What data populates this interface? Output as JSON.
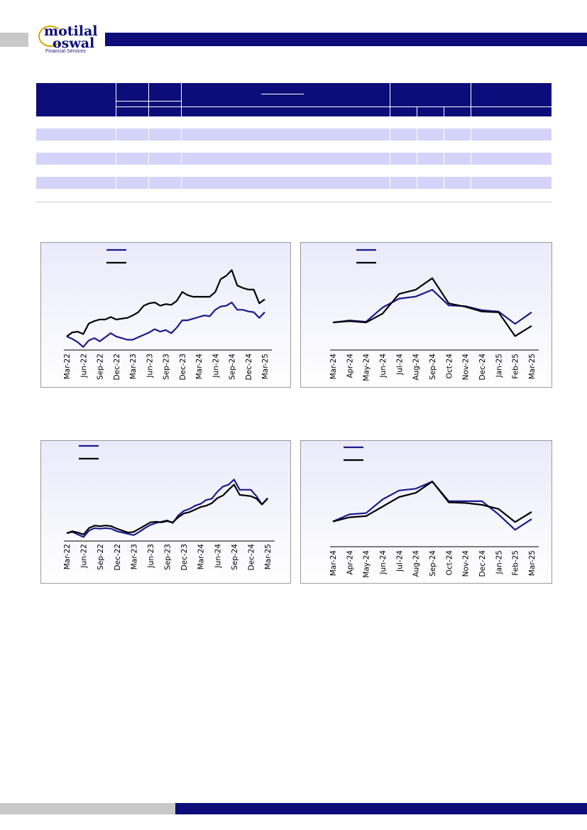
{
  "colors": {
    "brand_navy": "#0c0c7a",
    "brand_gold": "#d6a500",
    "table_band": "#d4d4fa",
    "series_blue": "#1a1a8c",
    "series_black": "#000000",
    "panel_bg": "#eaeafb"
  },
  "logo": {
    "word1": "motilal",
    "word2": "oswal",
    "tagline": "Financial Services"
  },
  "chart_data": [
    {
      "type": "line",
      "x": [
        "Mar-22",
        "Apr-22",
        "May-22",
        "Jun-22",
        "Jul-22",
        "Aug-22",
        "Sep-22",
        "Oct-22",
        "Nov-22",
        "Dec-22",
        "Jan-23",
        "Feb-23",
        "Mar-23",
        "Apr-23",
        "May-23",
        "Jun-23",
        "Jul-23",
        "Aug-23",
        "Sep-23",
        "Oct-23",
        "Nov-23",
        "Dec-23",
        "Jan-24",
        "Feb-24",
        "Mar-24",
        "Apr-24",
        "May-24",
        "Jun-24",
        "Jul-24",
        "Aug-24",
        "Sep-24",
        "Oct-24",
        "Nov-24",
        "Dec-24",
        "Jan-25",
        "Feb-25",
        "Mar-25"
      ],
      "x_ticks": [
        "Mar-22",
        "Jun-22",
        "Sep-22",
        "Dec-22",
        "Mar-23",
        "Jun-23",
        "Sep-23",
        "Dec-23",
        "Mar-24",
        "Jun-24",
        "Sep-24",
        "Dec-24",
        "Mar-25"
      ],
      "ylim": [
        0,
        100
      ],
      "series": [
        {
          "color": "#1a1a8c",
          "values": [
            15,
            12,
            8,
            2,
            10,
            13,
            9,
            14,
            19,
            15,
            13,
            11,
            11,
            14,
            17,
            20,
            24,
            21,
            23,
            19,
            26,
            35,
            35,
            37,
            39,
            41,
            40,
            48,
            52,
            53,
            57,
            48,
            48,
            46,
            45,
            38,
            45
          ]
        },
        {
          "color": "#000000",
          "values": [
            15,
            20,
            21,
            18,
            31,
            34,
            36,
            36,
            39,
            36,
            37,
            38,
            41,
            45,
            53,
            56,
            57,
            53,
            55,
            54,
            59,
            70,
            66,
            64,
            64,
            64,
            64,
            70,
            86,
            90,
            97,
            78,
            75,
            73,
            73,
            56,
            61
          ]
        }
      ]
    },
    {
      "type": "line",
      "x": [
        "Mar-24",
        "Apr-24",
        "May-24",
        "Jun-24",
        "Jul-24",
        "Aug-24",
        "Sep-24",
        "Oct-24",
        "Nov-24",
        "Dec-24",
        "Jan-25",
        "Feb-25",
        "Mar-25"
      ],
      "x_ticks": [
        "Mar-24",
        "Apr-24",
        "May-24",
        "Jun-24",
        "Jul-24",
        "Aug-24",
        "Sep-24",
        "Oct-24",
        "Nov-24",
        "Dec-24",
        "Jan-25",
        "Feb-25",
        "Mar-25"
      ],
      "ylim": [
        0,
        100
      ],
      "series": [
        {
          "color": "#1a1a8c",
          "values": [
            30,
            33,
            31,
            52,
            65,
            68,
            78,
            55,
            54,
            48,
            46,
            28,
            45
          ]
        },
        {
          "color": "#000000",
          "values": [
            30,
            32,
            30,
            43,
            72,
            78,
            95,
            58,
            53,
            46,
            45,
            10,
            25
          ]
        }
      ]
    },
    {
      "type": "line",
      "x": [
        "Mar-22",
        "Apr-22",
        "May-22",
        "Jun-22",
        "Jul-22",
        "Aug-22",
        "Sep-22",
        "Oct-22",
        "Nov-22",
        "Dec-22",
        "Jan-23",
        "Feb-23",
        "Mar-23",
        "Apr-23",
        "May-23",
        "Jun-23",
        "Jul-23",
        "Aug-23",
        "Sep-23",
        "Oct-23",
        "Nov-23",
        "Dec-23",
        "Jan-24",
        "Feb-24",
        "Mar-24",
        "Apr-24",
        "May-24",
        "Jun-24",
        "Jul-24",
        "Aug-24",
        "Sep-24",
        "Oct-24",
        "Nov-24",
        "Dec-24",
        "Jan-25",
        "Feb-25",
        "Mar-25"
      ],
      "x_ticks": [
        "Mar-22",
        "Jun-22",
        "Sep-22",
        "Dec-22",
        "Mar-23",
        "Jun-23",
        "Sep-23",
        "Dec-23",
        "Mar-24",
        "Jun-24",
        "Sep-24",
        "Dec-24",
        "Mar-25"
      ],
      "ylim": [
        0,
        100
      ],
      "series": [
        {
          "color": "#1a1a8c",
          "values": [
            10,
            12,
            8,
            4,
            14,
            18,
            17,
            18,
            17,
            13,
            11,
            9,
            7,
            12,
            18,
            23,
            26,
            28,
            30,
            26,
            38,
            45,
            48,
            53,
            56,
            62,
            64,
            75,
            83,
            86,
            94,
            78,
            78,
            78,
            68,
            55,
            65
          ]
        },
        {
          "color": "#000000",
          "values": [
            10,
            13,
            11,
            8,
            18,
            22,
            21,
            22,
            21,
            17,
            14,
            11,
            12,
            17,
            22,
            27,
            28,
            27,
            29,
            27,
            35,
            41,
            43,
            47,
            51,
            53,
            57,
            65,
            69,
            78,
            86,
            70,
            69,
            68,
            64,
            55,
            64
          ]
        }
      ]
    },
    {
      "type": "line",
      "x": [
        "Mar-24",
        "Apr-24",
        "May-24",
        "Jun-24",
        "Jul-24",
        "Aug-24",
        "Sep-24",
        "Oct-24",
        "Nov-24",
        "Dec-24",
        "Jan-25",
        "Feb-25",
        "Mar-25"
      ],
      "x_ticks": [
        "Mar-24",
        "Apr-24",
        "May-24",
        "Jun-24",
        "Jul-24",
        "Aug-24",
        "Sep-24",
        "Oct-24",
        "Nov-24",
        "Dec-24",
        "Jan-25",
        "Feb-25",
        "Mar-25"
      ],
      "ylim": [
        0,
        100
      ],
      "series": [
        {
          "color": "#1a1a8c",
          "values": [
            28,
            40,
            42,
            65,
            80,
            83,
            95,
            62,
            62,
            62,
            40,
            14,
            32
          ]
        },
        {
          "color": "#000000",
          "values": [
            28,
            35,
            37,
            53,
            69,
            76,
            95,
            60,
            59,
            56,
            49,
            27,
            44
          ]
        }
      ]
    }
  ]
}
